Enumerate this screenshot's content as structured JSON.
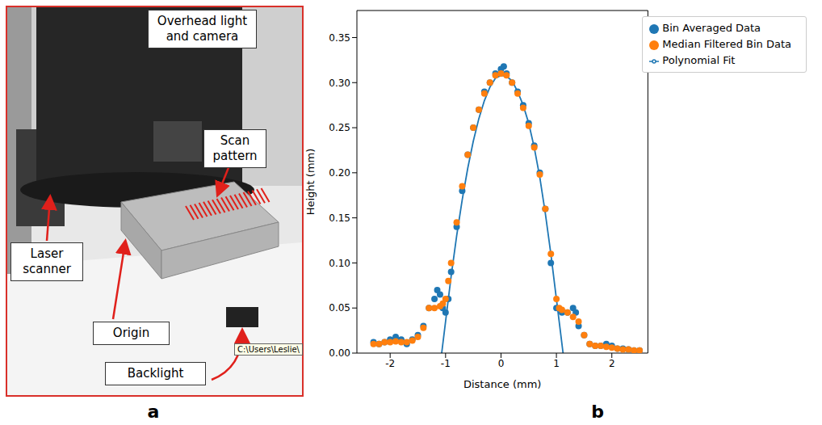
{
  "panel_a": {
    "letter": "a",
    "annotations": [
      "Overhead light and camera",
      "Scan pattern",
      "Laser scanner",
      "Origin",
      "Backlight"
    ],
    "path_text": "C:\\Users\\Leslie\\"
  },
  "panel_b": {
    "letter": "b"
  },
  "chart_data": {
    "type": "scatter",
    "x_label": "Distance (mm)",
    "y_label": "Height (mm)",
    "xlim": [
      -2.6,
      2.65
    ],
    "xticks": [
      -2,
      -1,
      0,
      1,
      2
    ],
    "ylim": [
      0,
      0.38
    ],
    "yticks": [
      {
        "value": 0,
        "label": "0.00"
      },
      {
        "value": 0.05,
        "label": "0.05"
      },
      {
        "value": 0.1,
        "label": "0.10"
      },
      {
        "value": 0.15,
        "label": "0.15"
      },
      {
        "value": 0.2,
        "label": "0.20"
      },
      {
        "value": 0.25,
        "label": "0.25"
      },
      {
        "value": 0.3,
        "label": "0.30"
      },
      {
        "value": 0.35,
        "label": "0.35"
      }
    ],
    "legend": "upper right",
    "grid": false,
    "series": [
      {
        "name": "Polynomial Fit",
        "type": "line",
        "color": "#1f77b4",
        "x": [
          -1.07,
          -1.0,
          -0.9,
          -0.8,
          -0.7,
          -0.6,
          -0.5,
          -0.4,
          -0.3,
          -0.2,
          -0.1,
          0,
          0.1,
          0.2,
          0.3,
          0.4,
          0.5,
          0.6,
          0.7,
          0.8,
          0.9,
          1.0,
          1.1,
          1.12
        ],
        "values": [
          0,
          0.035,
          0.085,
          0.13,
          0.17,
          0.205,
          0.235,
          0.26,
          0.28,
          0.295,
          0.305,
          0.308,
          0.307,
          0.302,
          0.29,
          0.275,
          0.255,
          0.228,
          0.195,
          0.155,
          0.11,
          0.06,
          0.01,
          0
        ]
      },
      {
        "name": "Bin Averaged Data",
        "type": "scatter",
        "marker": "circle",
        "color": "#1f77b4",
        "x": [
          -2.3,
          -2.2,
          -2.1,
          -2.0,
          -1.9,
          -1.8,
          -1.7,
          -1.6,
          -1.5,
          -1.4,
          -1.3,
          -1.2,
          -1.15,
          -1.1,
          -1.05,
          -1.0,
          -0.95,
          -0.9,
          -0.8,
          -0.7,
          -0.6,
          -0.5,
          -0.4,
          -0.3,
          -0.2,
          -0.1,
          0,
          0.05,
          0.1,
          0.2,
          0.3,
          0.4,
          0.5,
          0.6,
          0.7,
          0.8,
          0.9,
          1.0,
          1.1,
          1.2,
          1.3,
          1.35,
          1.4,
          1.5,
          1.6,
          1.7,
          1.8,
          1.9,
          2.0,
          2.1,
          2.2,
          2.3,
          2.4,
          2.5
        ],
        "values": [
          0.012,
          0.01,
          0.012,
          0.015,
          0.018,
          0.015,
          0.01,
          0.015,
          0.02,
          0.03,
          0.05,
          0.06,
          0.07,
          0.065,
          0.05,
          0.045,
          0.06,
          0.09,
          0.14,
          0.18,
          0.22,
          0.25,
          0.27,
          0.29,
          0.3,
          0.31,
          0.315,
          0.318,
          0.31,
          0.3,
          0.29,
          0.275,
          0.255,
          0.23,
          0.2,
          0.16,
          0.1,
          0.05,
          0.045,
          0.045,
          0.05,
          0.045,
          0.03,
          0.02,
          0.01,
          0.008,
          0.008,
          0.01,
          0.008,
          0.005,
          0.005,
          0.004,
          0.003,
          0.003
        ]
      },
      {
        "name": "Median Filtered Bin Data",
        "type": "scatter",
        "marker": "circle",
        "color": "#ff7f0e",
        "x": [
          -2.3,
          -2.2,
          -2.1,
          -2.0,
          -1.9,
          -1.8,
          -1.7,
          -1.6,
          -1.5,
          -1.4,
          -1.3,
          -1.2,
          -1.1,
          -1.05,
          -1.0,
          -0.95,
          -0.9,
          -0.8,
          -0.7,
          -0.6,
          -0.5,
          -0.4,
          -0.3,
          -0.2,
          -0.1,
          0,
          0.1,
          0.2,
          0.3,
          0.4,
          0.5,
          0.6,
          0.7,
          0.8,
          0.9,
          1.0,
          1.05,
          1.1,
          1.2,
          1.3,
          1.4,
          1.5,
          1.6,
          1.7,
          1.8,
          1.9,
          2.0,
          2.1,
          2.2,
          2.3,
          2.4,
          2.5
        ],
        "values": [
          0.01,
          0.01,
          0.012,
          0.012,
          0.013,
          0.012,
          0.012,
          0.014,
          0.018,
          0.028,
          0.05,
          0.05,
          0.052,
          0.055,
          0.06,
          0.08,
          0.1,
          0.145,
          0.185,
          0.22,
          0.25,
          0.27,
          0.288,
          0.3,
          0.308,
          0.31,
          0.308,
          0.3,
          0.288,
          0.272,
          0.252,
          0.228,
          0.198,
          0.16,
          0.11,
          0.06,
          0.05,
          0.048,
          0.045,
          0.04,
          0.035,
          0.02,
          0.01,
          0.008,
          0.008,
          0.007,
          0.006,
          0.005,
          0.004,
          0.004,
          0.003,
          0.003
        ]
      }
    ]
  }
}
